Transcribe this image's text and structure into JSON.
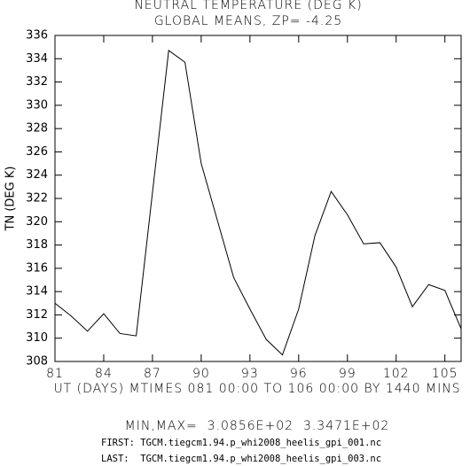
{
  "chart_data": {
    "type": "line",
    "title": "NEUTRAL TEMPERATURE (DEG K)",
    "subtitle": "GLOBAL MEANS, ZP= -4.25",
    "y_label": "TN (DEG K)",
    "x_label": "UT (DAYS) MTIMES 081 00:00 TO 106 00:00 BY 1440 MINS",
    "notes": [
      "MIN,MAX=  3.0856E+02  3.3471E+02",
      "FIRST: TGCM.tiegcm1.94.p_whi2008_heelis_gpi_001.nc",
      "LAST:  TGCM.tiegcm1.94.p_whi2008_heelis_gpi_003.nc"
    ],
    "x": [
      81,
      82,
      83,
      84,
      85,
      86,
      87,
      88,
      89,
      90,
      91,
      92,
      93,
      94,
      95,
      96,
      97,
      98,
      99,
      100,
      101,
      102,
      103,
      104,
      105,
      106
    ],
    "series": [
      {
        "color": "#000000",
        "values": [
          313.0,
          311.9,
          310.6,
          312.1,
          310.4,
          310.2,
          322.5,
          334.71,
          333.7,
          325.0,
          320.1,
          315.2,
          312.5,
          309.9,
          308.56,
          312.5,
          318.8,
          322.6,
          320.6,
          318.1,
          318.2,
          316.1,
          312.7,
          314.6,
          314.1,
          310.8
        ]
      }
    ],
    "xlim": [
      81,
      106
    ],
    "xticks": [
      81,
      84,
      87,
      90,
      93,
      96,
      99,
      102,
      105
    ],
    "ylim": [
      308,
      336
    ],
    "yticks": [
      308,
      310,
      312,
      314,
      316,
      318,
      320,
      322,
      324,
      326,
      328,
      330,
      332,
      334,
      336
    ]
  }
}
